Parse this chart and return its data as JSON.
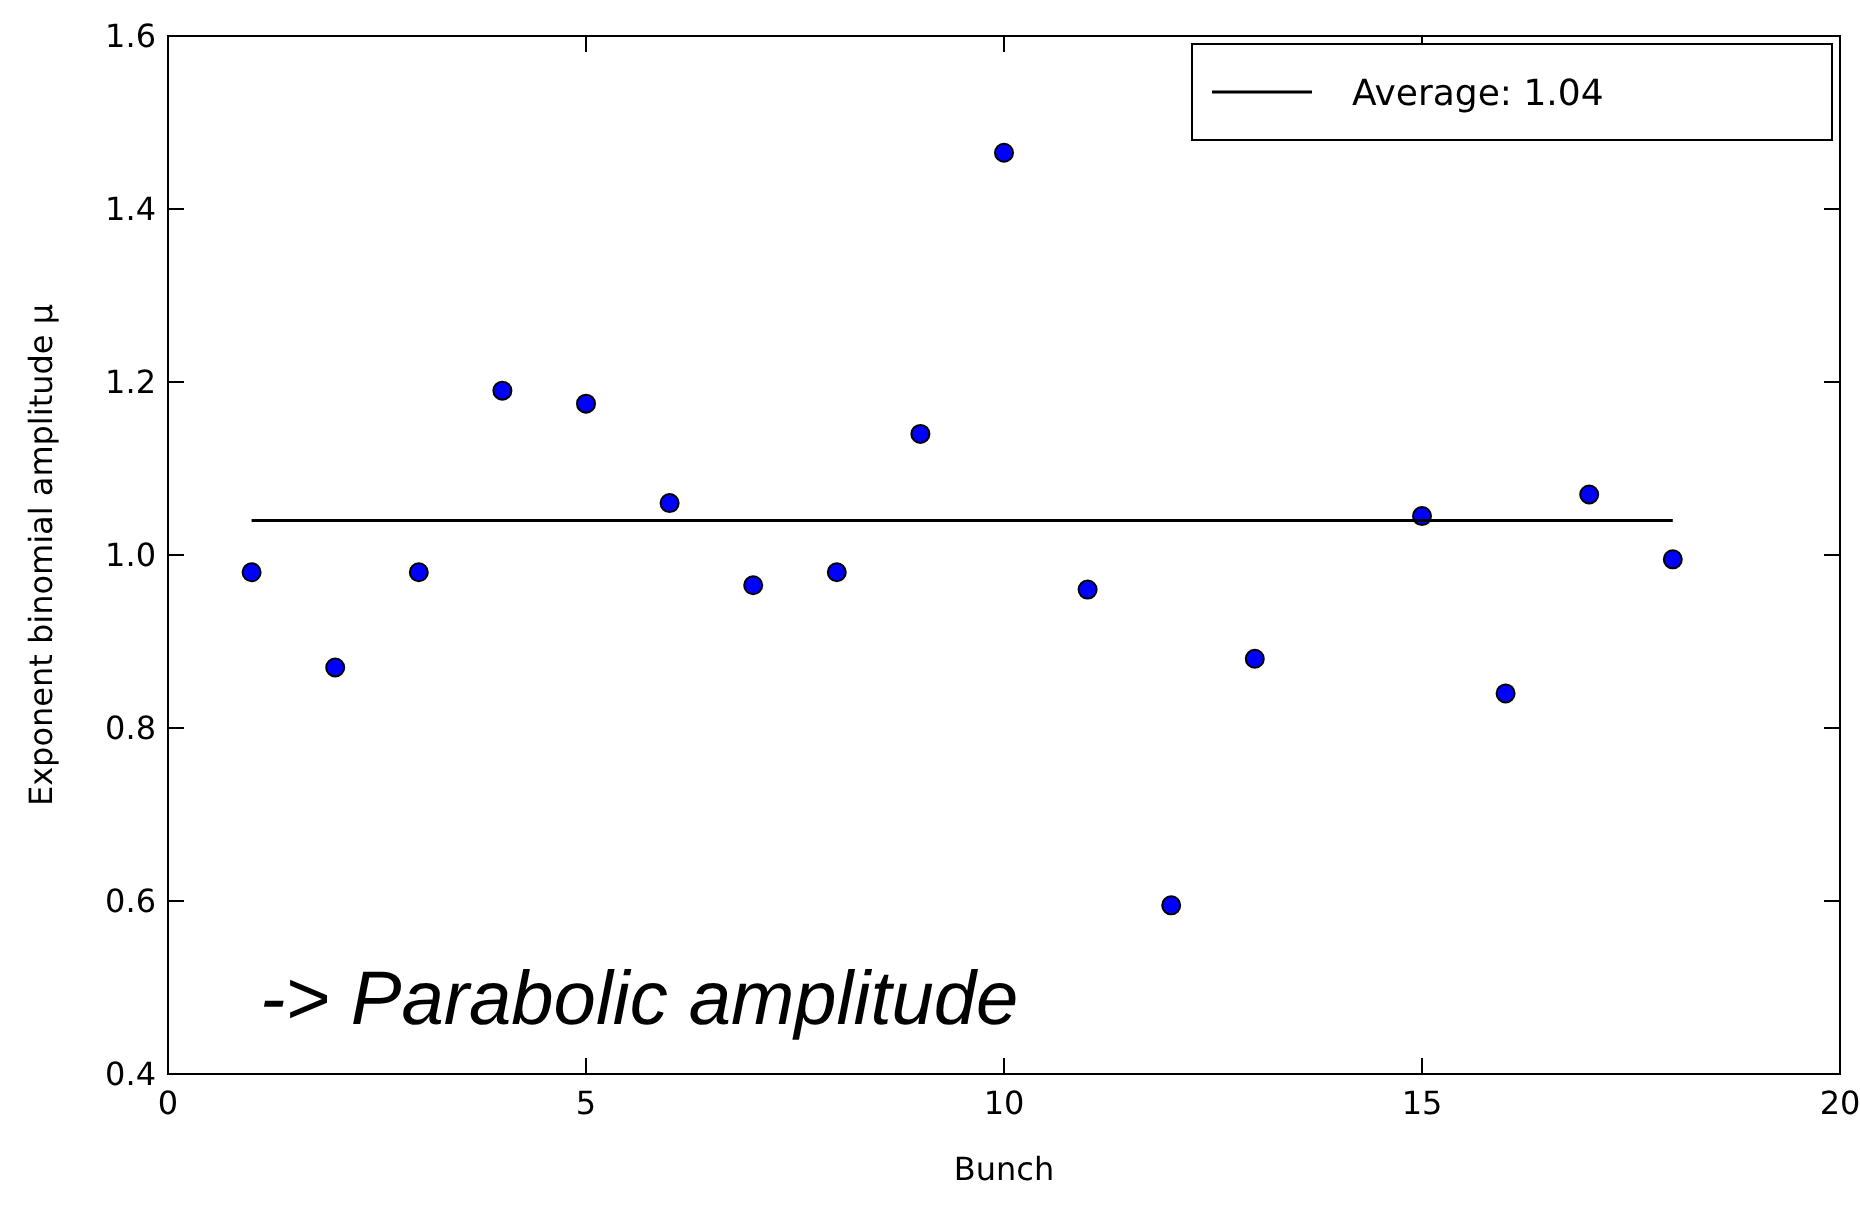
{
  "chart_data": {
    "type": "scatter",
    "xlabel": "Bunch",
    "ylabel": "Exponent binomial amplitude μ",
    "xlim": [
      0,
      20
    ],
    "xticks": [
      0,
      5,
      10,
      15,
      20
    ],
    "ylim": [
      0.4,
      1.6
    ],
    "yticks": [
      0.4,
      0.6,
      0.8,
      {
        "value": 1,
        "label": "1.0"
      },
      1.2,
      1.4,
      1.6
    ],
    "series": [
      {
        "type": "scatter",
        "color": "#0000ff",
        "marker": "circle",
        "x": [
          1,
          2,
          3,
          4,
          5,
          6,
          7,
          8,
          9,
          10,
          11,
          12,
          13,
          15,
          16,
          17,
          18
        ],
        "values": [
          0.98,
          0.87,
          0.98,
          1.19,
          1.175,
          1.06,
          0.965,
          0.98,
          1.14,
          1.465,
          0.96,
          0.595,
          0.88,
          1.045,
          0.84,
          1.07,
          0.995
        ]
      },
      {
        "type": "line",
        "name": "Average: 1.04",
        "color": "#000000",
        "marker": "none",
        "line_style": "solid",
        "x": [
          1,
          18
        ],
        "values": [
          1.04,
          1.04
        ]
      }
    ],
    "legend": "top right",
    "grid": false,
    "annotations": [
      "-> Parabolic amplitude"
    ]
  }
}
